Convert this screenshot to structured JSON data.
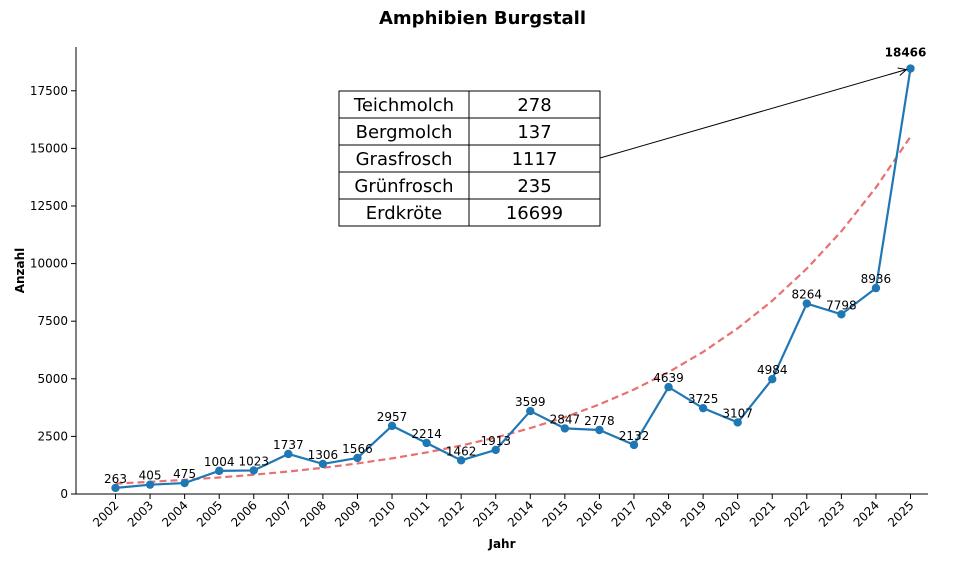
{
  "chart_data": {
    "type": "line",
    "title": "Amphibien Burgstall",
    "xlabel": "Jahr",
    "ylabel": "Anzahl",
    "x": [
      "2002",
      "2003",
      "2004",
      "2005",
      "2006",
      "2007",
      "2008",
      "2009",
      "2010",
      "2011",
      "2012",
      "2013",
      "2014",
      "2015",
      "2016",
      "2017",
      "2018",
      "2019",
      "2020",
      "2021",
      "2022",
      "2023",
      "2024",
      "2025"
    ],
    "series": [
      {
        "values": [
          263,
          405,
          475,
          1004,
          1023,
          1737,
          1306,
          1566,
          2957,
          2214,
          1462,
          1913,
          3599,
          2847,
          2778,
          2132,
          4639,
          3725,
          3107,
          4984,
          8264,
          7798,
          8936,
          18466
        ],
        "color": "#1f77b4",
        "style": "solid",
        "markers": true
      },
      {
        "values": [
          452,
          527,
          615,
          717,
          836,
          975,
          1137,
          1325,
          1546,
          1803,
          2102,
          2452,
          2859,
          3334,
          3888,
          4534,
          5288,
          6167,
          7191,
          8386,
          9780,
          11400,
          13300,
          15510
        ],
        "color": "#e87070",
        "style": "dashed",
        "markers": false
      }
    ],
    "ylim": [
      0,
      19400
    ],
    "yticks": [
      0,
      2500,
      5000,
      7500,
      10000,
      12500,
      15000,
      17500
    ],
    "grid": false,
    "highlight_label": "18466",
    "table": [
      {
        "name": "Teichmolch",
        "value": "278"
      },
      {
        "name": "Bergmolch",
        "value": "137"
      },
      {
        "name": "Grasfrosch",
        "value": "1117"
      },
      {
        "name": "Grünfrosch",
        "value": "235"
      },
      {
        "name": "Erdkröte",
        "value": "16699"
      }
    ]
  }
}
